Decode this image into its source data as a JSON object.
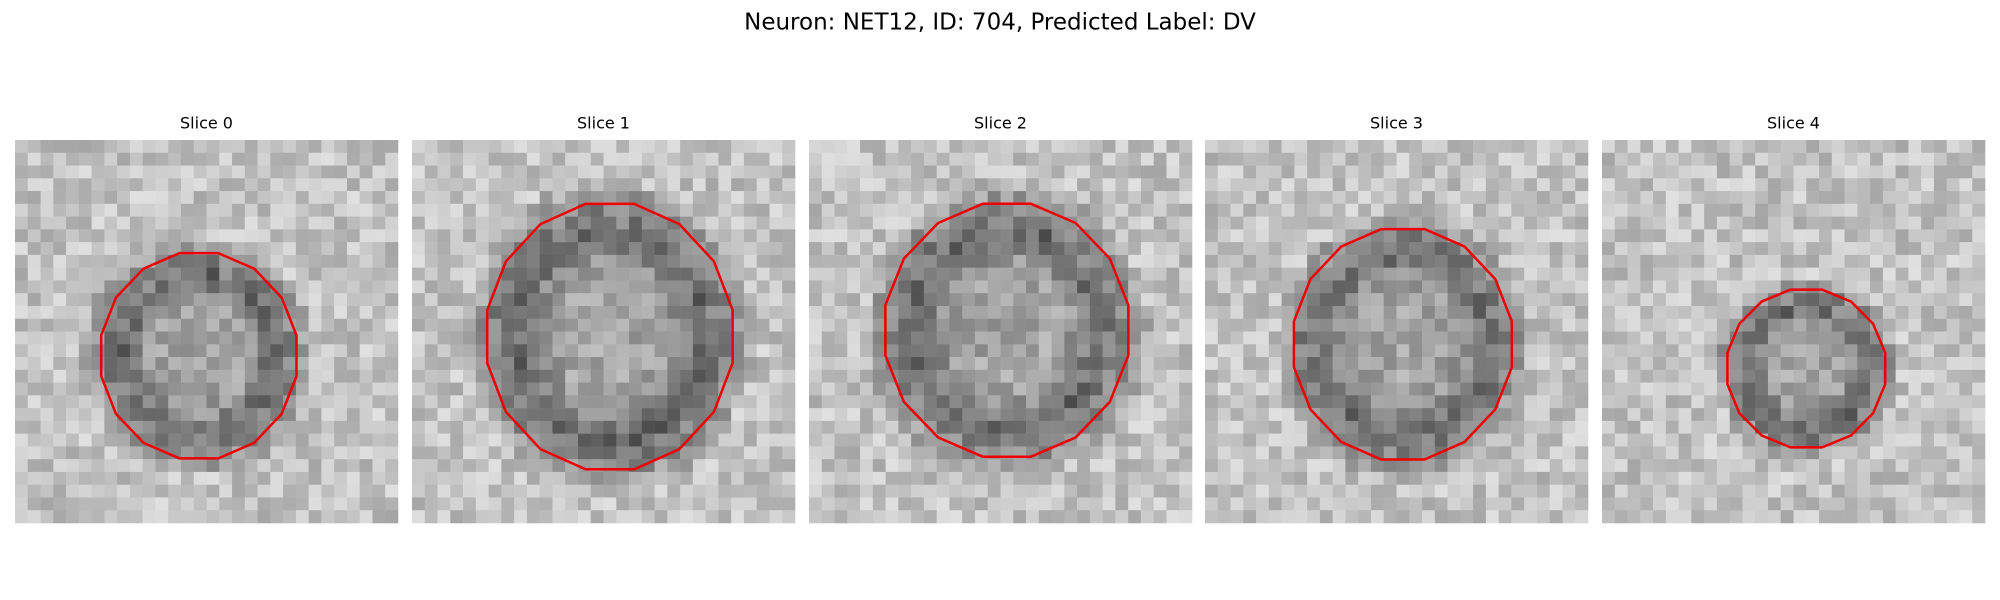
{
  "title": "Neuron: NET12, ID: 704, Predicted Label: DV",
  "panels": [
    {
      "title": "Slice 0"
    },
    {
      "title": "Slice 1"
    },
    {
      "title": "Slice 2"
    },
    {
      "title": "Slice 3"
    },
    {
      "title": "Slice 4"
    }
  ]
}
